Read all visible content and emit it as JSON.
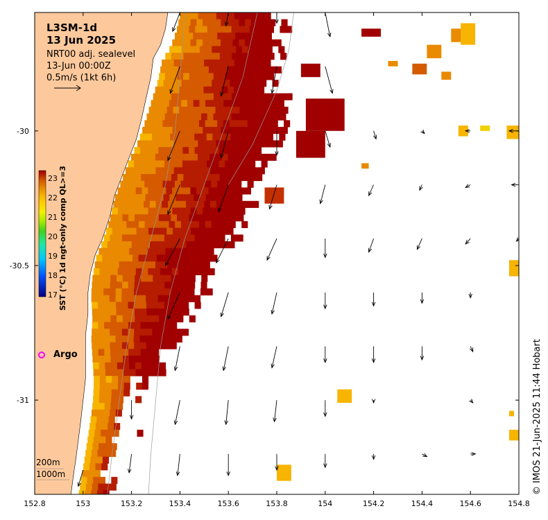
{
  "header": {
    "title_line1": "L3SM-1d",
    "title_line2": "13 Jun 2025",
    "line3": "NRT00 adj. sealevel",
    "line4": "13-Jun 00:00Z",
    "line5": "0.5m/s (1kt 6h)"
  },
  "legend": {
    "argo_label": "Argo",
    "argo_color": "#ff00ff",
    "contour_200": "200m",
    "contour_1000": "1000m"
  },
  "colorbar": {
    "title": "SST (°C) 1d ngt-only comp QL>=3",
    "ticks": [
      "23",
      "22",
      "21",
      "20",
      "19",
      "18",
      "17"
    ]
  },
  "credit": "© IMOS 21-Jun-2025 11:44 Hobart",
  "colors": {
    "land": "#fdc99c",
    "sst_scale": [
      "#00007f",
      "#0050ff",
      "#00c8ff",
      "#20e8a0",
      "#40d020",
      "#a8ec00",
      "#f0f000",
      "#ffd000",
      "#f7b400",
      "#e98a00",
      "#d55a00",
      "#b51c00",
      "#a00000"
    ]
  },
  "chart_data": {
    "type": "map",
    "xlim": [
      152.8,
      154.8
    ],
    "ylim": [
      -31.35,
      -29.56
    ],
    "sst_range": [
      17,
      23.5
    ],
    "x_ticks": [
      {
        "value": 152.8,
        "label": "152.8"
      },
      {
        "value": 153.0,
        "label": "153"
      },
      {
        "value": 153.2,
        "label": "153.2"
      },
      {
        "value": 153.4,
        "label": "153.4"
      },
      {
        "value": 153.6,
        "label": "153.6"
      },
      {
        "value": 153.8,
        "label": "153.8"
      },
      {
        "value": 154.0,
        "label": "154"
      },
      {
        "value": 154.2,
        "label": "154.2"
      },
      {
        "value": 154.4,
        "label": "154.4"
      },
      {
        "value": 154.6,
        "label": "154.6"
      },
      {
        "value": 154.8,
        "label": "154.8"
      }
    ],
    "y_ticks": [
      {
        "value": -30.0,
        "label": "-30"
      },
      {
        "value": -30.5,
        "label": "-30.5"
      },
      {
        "value": -31.0,
        "label": "-31"
      }
    ],
    "coastline": [
      [
        153.35,
        -29.56
      ],
      [
        153.34,
        -29.62
      ],
      [
        153.32,
        -29.68
      ],
      [
        153.29,
        -29.73
      ],
      [
        153.28,
        -29.8
      ],
      [
        153.26,
        -29.88
      ],
      [
        153.24,
        -29.96
      ],
      [
        153.22,
        -30.03
      ],
      [
        153.19,
        -30.1
      ],
      [
        153.16,
        -30.17
      ],
      [
        153.13,
        -30.24
      ],
      [
        153.11,
        -30.32
      ],
      [
        153.08,
        -30.4
      ],
      [
        153.05,
        -30.46
      ],
      [
        153.03,
        -30.53
      ],
      [
        153.02,
        -30.6
      ],
      [
        153.02,
        -30.68
      ],
      [
        153.01,
        -30.76
      ],
      [
        153.01,
        -30.84
      ],
      [
        153.01,
        -30.92
      ],
      [
        153.0,
        -31.0
      ],
      [
        152.99,
        -31.08
      ],
      [
        152.98,
        -31.15
      ],
      [
        152.97,
        -31.22
      ],
      [
        152.96,
        -31.28
      ],
      [
        152.95,
        -31.35
      ]
    ],
    "sst_region": {
      "cols_per_degree": 40,
      "rows_per_degree": 40,
      "inner_edge": [
        [
          -29.56,
          0.05
        ],
        [
          -29.8,
          0.03
        ],
        [
          -30.1,
          0.0
        ],
        [
          -30.4,
          0.0
        ],
        [
          -30.7,
          0.02
        ],
        [
          -31.0,
          0.04
        ],
        [
          -31.35,
          0.03
        ]
      ],
      "outer_edge": [
        [
          -29.56,
          153.82
        ],
        [
          -29.7,
          153.8
        ],
        [
          -29.9,
          153.82
        ],
        [
          -30.0,
          153.85
        ],
        [
          -30.1,
          153.78
        ],
        [
          -30.2,
          153.74
        ],
        [
          -30.3,
          153.68
        ],
        [
          -30.4,
          153.6
        ],
        [
          -30.5,
          153.54
        ],
        [
          -30.6,
          153.5
        ],
        [
          -30.7,
          153.42
        ],
        [
          -30.8,
          153.36
        ],
        [
          -30.9,
          153.3
        ],
        [
          -31.0,
          153.24
        ],
        [
          -31.1,
          153.2
        ],
        [
          -31.2,
          153.16
        ],
        [
          -31.35,
          153.12
        ]
      ]
    },
    "isobath_200": [
      [
        153.42,
        -29.56
      ],
      [
        153.4,
        -29.8
      ],
      [
        153.38,
        -30.0
      ],
      [
        153.34,
        -30.2
      ],
      [
        153.28,
        -30.4
      ],
      [
        153.22,
        -30.6
      ],
      [
        153.18,
        -30.8
      ],
      [
        153.15,
        -31.0
      ],
      [
        153.12,
        -31.2
      ],
      [
        153.1,
        -31.35
      ]
    ],
    "isobath_1000": [
      [
        153.72,
        -29.56
      ],
      [
        153.66,
        -29.8
      ],
      [
        153.58,
        -30.0
      ],
      [
        153.5,
        -30.2
      ],
      [
        153.42,
        -30.4
      ],
      [
        153.36,
        -30.6
      ],
      [
        153.32,
        -30.8
      ],
      [
        153.3,
        -31.0
      ],
      [
        153.28,
        -31.2
      ],
      [
        153.27,
        -31.35
      ]
    ],
    "isobath_extra": [
      [
        153.87,
        -29.56
      ],
      [
        153.85,
        -29.7
      ],
      [
        153.8,
        -29.85
      ],
      [
        153.7,
        -30.05
      ],
      [
        153.6,
        -30.2
      ]
    ],
    "offshore_patches": [
      {
        "x": 153.92,
        "y": -29.88,
        "w": 0.16,
        "h": 0.12,
        "c": "#a00000"
      },
      {
        "x": 153.88,
        "y": -30.0,
        "w": 0.12,
        "h": 0.1,
        "c": "#a00000"
      },
      {
        "x": 153.9,
        "y": -29.75,
        "w": 0.08,
        "h": 0.05,
        "c": "#a00000"
      },
      {
        "x": 153.75,
        "y": -30.21,
        "w": 0.08,
        "h": 0.06,
        "c": "#c33000"
      },
      {
        "x": 154.15,
        "y": -29.62,
        "w": 0.08,
        "h": 0.03,
        "c": "#a00000"
      },
      {
        "x": 154.56,
        "y": -29.6,
        "w": 0.06,
        "h": 0.08,
        "c": "#f7b400"
      },
      {
        "x": 154.42,
        "y": -29.68,
        "w": 0.06,
        "h": 0.05,
        "c": "#e98a00"
      },
      {
        "x": 154.52,
        "y": -29.62,
        "w": 0.04,
        "h": 0.05,
        "c": "#e98a00"
      },
      {
        "x": 154.36,
        "y": -29.75,
        "w": 0.06,
        "h": 0.04,
        "c": "#d55a00"
      },
      {
        "x": 154.26,
        "y": -29.74,
        "w": 0.04,
        "h": 0.02,
        "c": "#e98a00"
      },
      {
        "x": 154.48,
        "y": -29.78,
        "w": 0.04,
        "h": 0.03,
        "c": "#e98a00"
      },
      {
        "x": 154.55,
        "y": -29.98,
        "w": 0.04,
        "h": 0.04,
        "c": "#f7b400"
      },
      {
        "x": 154.75,
        "y": -29.98,
        "w": 0.05,
        "h": 0.05,
        "c": "#f7b400"
      },
      {
        "x": 154.64,
        "y": -29.98,
        "w": 0.04,
        "h": 0.02,
        "c": "#f0d000"
      },
      {
        "x": 154.76,
        "y": -30.48,
        "w": 0.04,
        "h": 0.06,
        "c": "#f7b400"
      },
      {
        "x": 154.05,
        "y": -30.96,
        "w": 0.06,
        "h": 0.05,
        "c": "#f7b400"
      },
      {
        "x": 154.76,
        "y": -31.11,
        "w": 0.04,
        "h": 0.04,
        "c": "#f7b400"
      },
      {
        "x": 154.76,
        "y": -31.04,
        "w": 0.02,
        "h": 0.02,
        "c": "#f7b400"
      },
      {
        "x": 153.8,
        "y": -31.24,
        "w": 0.06,
        "h": 0.06,
        "c": "#f7b400"
      },
      {
        "x": 154.15,
        "y": -30.12,
        "w": 0.03,
        "h": 0.02,
        "c": "#e98a00"
      }
    ],
    "current_arrows": [
      [
        153.4,
        -29.56,
        -0.03,
        -0.07
      ],
      [
        153.6,
        -29.56,
        -0.01,
        -0.05
      ],
      [
        153.8,
        -29.56,
        0.0,
        -0.04
      ],
      [
        154.0,
        -29.56,
        0.02,
        -0.09
      ],
      [
        153.4,
        -29.76,
        -0.04,
        -0.1
      ],
      [
        153.6,
        -29.76,
        -0.03,
        -0.11
      ],
      [
        153.8,
        -29.76,
        -0.02,
        -0.1
      ],
      [
        154.0,
        -29.76,
        0.03,
        -0.1
      ],
      [
        153.4,
        -30.0,
        -0.05,
        -0.11
      ],
      [
        153.6,
        -30.0,
        -0.03,
        -0.1
      ],
      [
        153.8,
        -30.0,
        0.0,
        -0.09
      ],
      [
        154.0,
        -30.0,
        0.02,
        -0.06
      ],
      [
        154.2,
        -30.0,
        0.01,
        -0.03
      ],
      [
        154.4,
        -30.0,
        0.01,
        -0.01
      ],
      [
        154.6,
        -30.0,
        -0.02,
        0.0
      ],
      [
        154.8,
        -30.0,
        -0.04,
        0.0
      ],
      [
        153.4,
        -30.2,
        -0.05,
        -0.11
      ],
      [
        153.6,
        -30.2,
        -0.04,
        -0.1
      ],
      [
        153.8,
        -30.2,
        -0.03,
        -0.09
      ],
      [
        154.0,
        -30.2,
        -0.02,
        -0.07
      ],
      [
        154.2,
        -30.2,
        -0.02,
        -0.04
      ],
      [
        154.4,
        -30.2,
        -0.01,
        -0.02
      ],
      [
        154.6,
        -30.2,
        -0.02,
        -0.01
      ],
      [
        154.8,
        -30.2,
        -0.03,
        0.0
      ],
      [
        153.4,
        -30.4,
        -0.06,
        -0.1
      ],
      [
        153.6,
        -30.4,
        -0.05,
        -0.09
      ],
      [
        153.8,
        -30.4,
        -0.04,
        -0.08
      ],
      [
        154.0,
        -30.4,
        0.0,
        -0.07
      ],
      [
        154.2,
        -30.4,
        -0.02,
        -0.05
      ],
      [
        154.4,
        -30.4,
        -0.02,
        -0.04
      ],
      [
        154.6,
        -30.4,
        -0.02,
        -0.02
      ],
      [
        154.8,
        -30.4,
        -0.01,
        -0.01
      ],
      [
        153.4,
        -30.6,
        -0.05,
        -0.1
      ],
      [
        153.6,
        -30.6,
        -0.03,
        -0.09
      ],
      [
        153.8,
        -30.6,
        -0.02,
        -0.08
      ],
      [
        154.0,
        -30.6,
        0.0,
        -0.06
      ],
      [
        154.2,
        -30.6,
        0.0,
        -0.05
      ],
      [
        154.4,
        -30.6,
        0.0,
        -0.04
      ],
      [
        154.6,
        -30.6,
        0.0,
        -0.02
      ],
      [
        153.4,
        -30.8,
        -0.02,
        -0.09
      ],
      [
        153.6,
        -30.8,
        -0.02,
        -0.09
      ],
      [
        153.8,
        -30.8,
        -0.02,
        -0.08
      ],
      [
        154.0,
        -30.8,
        0.0,
        -0.06
      ],
      [
        154.2,
        -30.8,
        0.0,
        -0.06
      ],
      [
        154.4,
        -30.8,
        0.0,
        -0.05
      ],
      [
        154.6,
        -30.8,
        0.01,
        -0.02
      ],
      [
        153.2,
        -31.0,
        0.0,
        -0.07
      ],
      [
        153.4,
        -31.0,
        -0.02,
        -0.09
      ],
      [
        153.6,
        -31.0,
        -0.01,
        -0.09
      ],
      [
        153.8,
        -31.0,
        -0.01,
        -0.08
      ],
      [
        154.0,
        -31.0,
        0.0,
        -0.06
      ],
      [
        154.2,
        -31.0,
        0.0,
        -0.01
      ],
      [
        154.6,
        -31.0,
        0.01,
        -0.01
      ],
      [
        153.2,
        -31.2,
        -0.01,
        -0.07
      ],
      [
        153.4,
        -31.2,
        -0.01,
        -0.08
      ],
      [
        153.6,
        -31.2,
        0.0,
        -0.08
      ],
      [
        153.8,
        -31.2,
        0.0,
        -0.06
      ],
      [
        154.0,
        -31.2,
        0.0,
        -0.05
      ],
      [
        154.2,
        -31.2,
        0.0,
        -0.02
      ],
      [
        154.4,
        -31.2,
        0.02,
        -0.01
      ],
      [
        154.6,
        -31.2,
        0.02,
        0.0
      ],
      [
        153.0,
        -31.26,
        -0.02,
        -0.06
      ]
    ],
    "legend_arrow": {
      "speed_label": "0.5m/s (1kt 6h)"
    },
    "argo_floats": []
  }
}
